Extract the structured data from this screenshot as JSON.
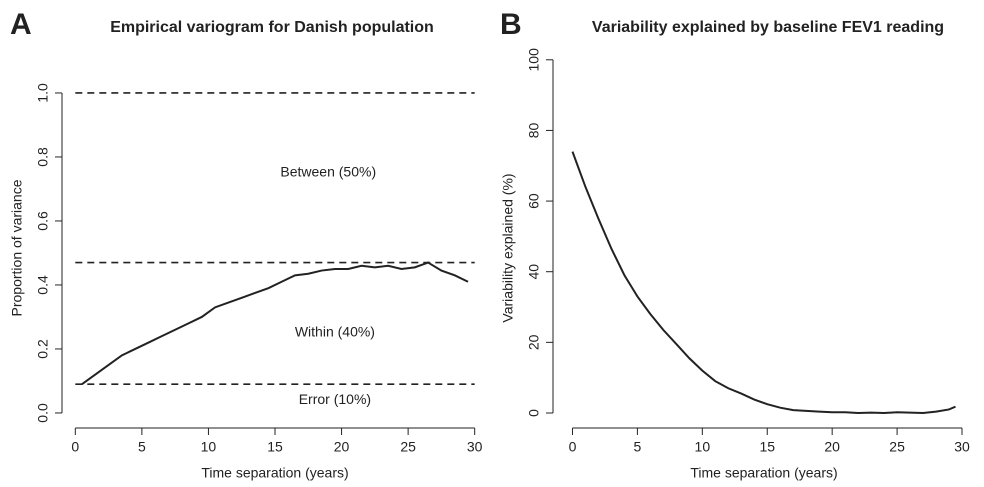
{
  "chart_data": [
    {
      "type": "line",
      "panel_label": "A",
      "title": "Empirical variogram for Danish population",
      "x_label": "Time separation (years)",
      "y_label": "Proportion of variance",
      "x": [
        0.5,
        1.5,
        2.5,
        3.5,
        4.5,
        5.5,
        6.5,
        7.5,
        8.5,
        9.5,
        10.5,
        11.5,
        12.5,
        13.5,
        14.5,
        15.5,
        16.5,
        17.5,
        18.5,
        19.5,
        20.5,
        21.5,
        22.5,
        23.5,
        24.5,
        25.5,
        26.5,
        27.5,
        28.5,
        29.5
      ],
      "values": [
        0.09,
        0.12,
        0.15,
        0.18,
        0.2,
        0.22,
        0.24,
        0.26,
        0.28,
        0.3,
        0.33,
        0.345,
        0.36,
        0.375,
        0.39,
        0.41,
        0.43,
        0.435,
        0.445,
        0.45,
        0.45,
        0.46,
        0.455,
        0.46,
        0.45,
        0.455,
        0.47,
        0.445,
        0.43,
        0.41
      ],
      "color": "#222222",
      "hlines": [
        1.0,
        0.47,
        0.09
      ],
      "annotations": [
        "Between (50%)",
        "Within (40%)",
        "Error (10%)"
      ],
      "xlim": [
        -1,
        31
      ],
      "ylim": [
        -0.047,
        1.203
      ],
      "xticks": [
        0,
        5,
        10,
        15,
        20,
        25,
        30
      ],
      "yticks": [
        {
          "value": 0,
          "label": "0.0"
        },
        0.2,
        0.4,
        0.6,
        0.8,
        {
          "value": 1,
          "label": "1.0"
        }
      ]
    },
    {
      "type": "line",
      "panel_label": "B",
      "title": "Variability explained by baseline FEV1 reading",
      "x_label": "Time separation (years)",
      "y_label": "Variability explained (%)",
      "x": [
        0,
        1,
        2,
        3,
        4,
        5,
        6,
        7,
        8,
        9,
        10,
        11,
        12,
        13,
        14,
        15,
        16,
        17,
        18,
        19,
        20,
        21,
        22,
        23,
        24,
        25,
        26,
        27,
        28,
        29,
        29.5
      ],
      "values": [
        74,
        64,
        55,
        46.5,
        39,
        33,
        28,
        23.5,
        19.5,
        15.5,
        12,
        9,
        7,
        5.5,
        3.8,
        2.5,
        1.5,
        0.8,
        0.6,
        0.4,
        0.2,
        0.2,
        0,
        0.1,
        0,
        0.2,
        0.1,
        0,
        0.4,
        1,
        1.8
      ],
      "color": "#222222",
      "xlim": [
        -1.5,
        31
      ],
      "ylim": [
        -4.25,
        109
      ],
      "xticks": [
        0,
        5,
        10,
        15,
        20,
        25,
        30
      ],
      "yticks": [
        0,
        20,
        40,
        60,
        80,
        100
      ]
    }
  ]
}
